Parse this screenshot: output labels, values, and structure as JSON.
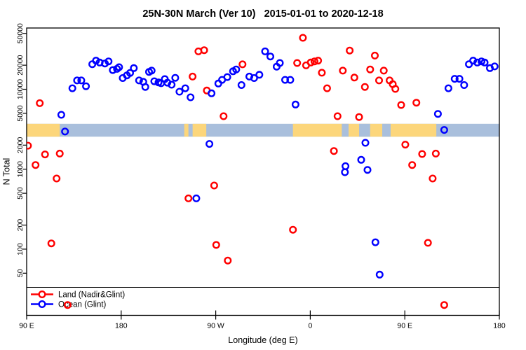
{
  "title": "25N-30N March (Ver 10)   2015-01-01 to 2020-12-18",
  "legend": {
    "items": [
      {
        "label": "Land (Nadir&Glint)",
        "color": "#ff0000"
      },
      {
        "label": "Ocean (Glint)",
        "color": "#0000ff"
      }
    ]
  },
  "chart_data": {
    "type": "scatter",
    "title": "25N-30N March (Ver 10)   2015-01-01 to 2020-12-18",
    "xlabel": "Longitude (deg E)",
    "ylabel": "N Total",
    "x_axis": {
      "range_deg": [
        90,
        540
      ],
      "note": "longitude axis wraps: 90E to 180 to 90W to 0 to 90E to 180",
      "ticks": [
        {
          "value": 90,
          "label": "90 E"
        },
        {
          "value": 180,
          "label": "180"
        },
        {
          "value": 270,
          "label": "90 W"
        },
        {
          "value": 360,
          "label": "0"
        },
        {
          "value": 450,
          "label": "90 E"
        },
        {
          "value": 540,
          "label": "180"
        }
      ]
    },
    "y_axis": {
      "scale": "log",
      "top_value": 50000,
      "ticks": [
        "50",
        "100",
        "200",
        "500",
        "1000",
        "2000",
        "5000",
        "10000",
        "20000",
        "50000"
      ],
      "tick_values": [
        50,
        100,
        200,
        500,
        1000,
        2000,
        5000,
        10000,
        20000,
        50000
      ]
    },
    "surface_band": {
      "n_top": 3700,
      "n_bottom": 2550,
      "land_color": "#fcd67b",
      "ocean_color": "#a9bfdc",
      "land_segments_deg": [
        [
          90,
          121.5
        ],
        [
          240,
          244
        ],
        [
          248,
          261
        ],
        [
          343.5,
          480
        ]
      ],
      "ocean_notches_deg": [
        [
          390,
          396.5
        ],
        [
          406.5,
          417
        ],
        [
          428.5,
          436.5
        ]
      ]
    },
    "series": [
      {
        "name": "Land (Nadir&Glint)",
        "color": "#ff0000",
        "points": [
          [
            91.3,
            1970
          ],
          [
            98.5,
            1130
          ],
          [
            102.5,
            6700
          ],
          [
            107.5,
            1530
          ],
          [
            113.5,
            118
          ],
          [
            118.5,
            765
          ],
          [
            121.5,
            1570
          ],
          [
            129,
            20
          ],
          [
            244,
            432
          ],
          [
            248,
            14400
          ],
          [
            253.5,
            29800
          ],
          [
            259,
            30800
          ],
          [
            261.5,
            9650
          ],
          [
            268.5,
            626
          ],
          [
            270.5,
            113
          ],
          [
            277.5,
            4600
          ],
          [
            281.5,
            72
          ],
          [
            295.5,
            20500
          ],
          [
            343.5,
            175
          ],
          [
            347.5,
            21300
          ],
          [
            353,
            44000
          ],
          [
            356,
            19900
          ],
          [
            360.5,
            21600
          ],
          [
            364,
            22300
          ],
          [
            367.5,
            22800
          ],
          [
            371,
            16100
          ],
          [
            376,
            10300
          ],
          [
            382.5,
            1690
          ],
          [
            386,
            4600
          ],
          [
            391,
            17100
          ],
          [
            397.5,
            30500
          ],
          [
            402,
            14000
          ],
          [
            406.5,
            4490
          ],
          [
            412,
            10700
          ],
          [
            417,
            17700
          ],
          [
            421.5,
            26400
          ],
          [
            425.5,
            12900
          ],
          [
            430,
            17100
          ],
          [
            435.5,
            12900
          ],
          [
            438.5,
            11600
          ],
          [
            441,
            10100
          ],
          [
            446.5,
            6360
          ],
          [
            450.5,
            2030
          ],
          [
            457,
            1130
          ],
          [
            461,
            6790
          ],
          [
            466.5,
            1550
          ],
          [
            472,
            120
          ],
          [
            476.5,
            765
          ],
          [
            479.5,
            1570
          ],
          [
            487.5,
            20
          ]
        ]
      },
      {
        "name": "Ocean (Glint)",
        "color": "#0000ff",
        "points": [
          [
            123,
            4790
          ],
          [
            126.5,
            2960
          ],
          [
            133.5,
            10300
          ],
          [
            138,
            12900
          ],
          [
            142,
            12900
          ],
          [
            146.5,
            10900
          ],
          [
            152.5,
            20600
          ],
          [
            156,
            22800
          ],
          [
            159.5,
            21600
          ],
          [
            164.5,
            21000
          ],
          [
            168,
            22300
          ],
          [
            172,
            17400
          ],
          [
            176,
            18000
          ],
          [
            178,
            18900
          ],
          [
            181.5,
            13800
          ],
          [
            185.5,
            14900
          ],
          [
            188.5,
            16000
          ],
          [
            192,
            18400
          ],
          [
            197,
            12900
          ],
          [
            201,
            12400
          ],
          [
            203,
            10700
          ],
          [
            206.5,
            16500
          ],
          [
            209,
            17100
          ],
          [
            211.5,
            12600
          ],
          [
            215.5,
            12200
          ],
          [
            218,
            11900
          ],
          [
            221.5,
            13400
          ],
          [
            224,
            12100
          ],
          [
            228,
            11400
          ],
          [
            231.5,
            13900
          ],
          [
            235.5,
            9320
          ],
          [
            241,
            10300
          ],
          [
            246,
            7940
          ],
          [
            251.5,
            432
          ],
          [
            264,
            2070
          ],
          [
            266,
            8900
          ],
          [
            272.5,
            11800
          ],
          [
            276,
            13100
          ],
          [
            281,
            14200
          ],
          [
            286.5,
            16800
          ],
          [
            289.5,
            17700
          ],
          [
            294.5,
            11300
          ],
          [
            302,
            14400
          ],
          [
            306.5,
            13800
          ],
          [
            311.5,
            15200
          ],
          [
            317,
            29800
          ],
          [
            322,
            25700
          ],
          [
            328,
            19200
          ],
          [
            331,
            21300
          ],
          [
            336,
            13100
          ],
          [
            341,
            13100
          ],
          [
            346,
            6450
          ],
          [
            393,
            917
          ],
          [
            393.5,
            1090
          ],
          [
            408.5,
            1310
          ],
          [
            412.5,
            2140
          ],
          [
            414.5,
            981
          ],
          [
            422,
            122
          ],
          [
            426,
            48
          ],
          [
            481.5,
            4920
          ],
          [
            487.5,
            3100
          ],
          [
            491.5,
            10300
          ],
          [
            497.5,
            13500
          ],
          [
            502,
            13500
          ],
          [
            506.5,
            11300
          ],
          [
            511,
            20600
          ],
          [
            515,
            22800
          ],
          [
            519,
            21600
          ],
          [
            523,
            22300
          ],
          [
            526,
            21600
          ],
          [
            531,
            18400
          ],
          [
            535.5,
            19300
          ]
        ]
      }
    ]
  }
}
